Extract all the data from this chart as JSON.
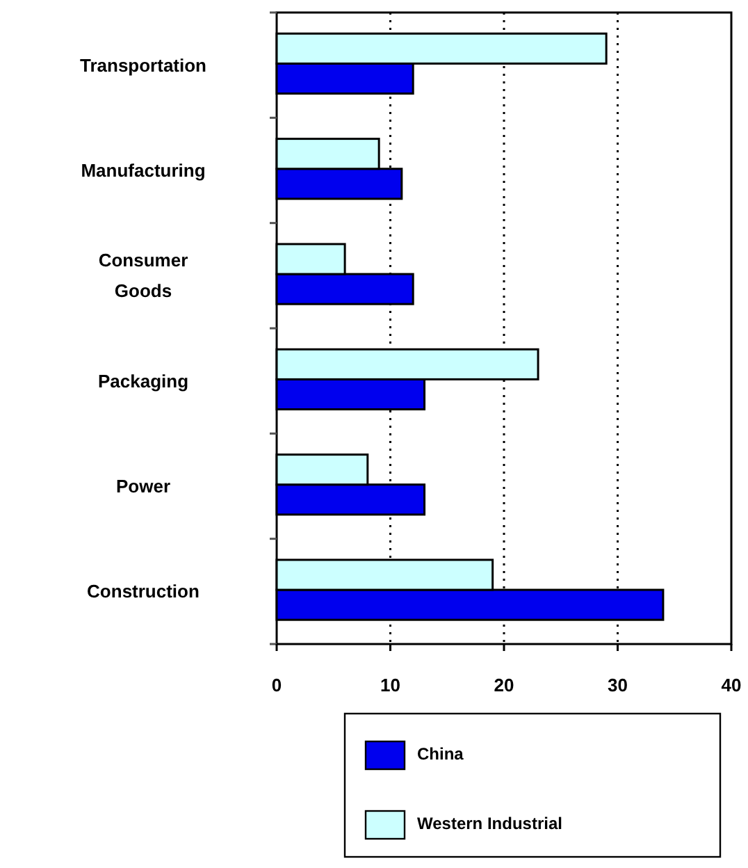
{
  "chart_data": {
    "type": "bar",
    "orientation": "horizontal",
    "categories": [
      "Transportation",
      "Manufacturing",
      "Consumer\nGoods",
      "Packaging",
      "Power",
      "Construction"
    ],
    "series": [
      {
        "name": "China",
        "color": "#0000ee",
        "values": [
          12,
          11,
          12,
          13,
          13,
          34
        ]
      },
      {
        "name": "Western Industrial",
        "color": "#ccffff",
        "values": [
          29,
          9,
          6,
          23,
          8,
          19
        ]
      }
    ],
    "xlim": [
      0,
      40
    ],
    "xticks": [
      0,
      10,
      20,
      30,
      40
    ],
    "grid": "x",
    "legend": "bottom"
  }
}
